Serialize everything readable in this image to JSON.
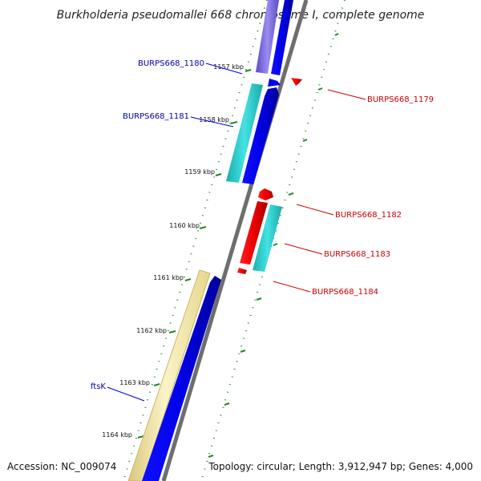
{
  "title": "Burkholderia pseudomallei 668 chromosome I, complete genome",
  "footer": {
    "accession": "Accession: NC_009074",
    "summary": "Topology: circular; Length: 3,912,947 bp; Genes: 4,000"
  },
  "ticks": [
    "1157 kbp",
    "1158 kbp",
    "1159 kbp",
    "1160 kbp",
    "1161 kbp",
    "1162 kbp",
    "1163 kbp",
    "1164 kbp"
  ],
  "gene_labels": {
    "left": [
      "BURPS668_1180",
      "BURPS668_1181",
      "ftsK"
    ],
    "right": [
      "BURPS668_1179",
      "BURPS668_1182",
      "BURPS668_1183",
      "BURPS668_1184"
    ]
  },
  "colors": {
    "forward_cds": "#0000ee",
    "reverse_cds": "#ee1111",
    "cyan_band": "#22cccc",
    "purple_band": "#7766dd",
    "yellow_band": "#f2e6a0",
    "backbone": "#888888",
    "tick_dots": "#228822",
    "label_left": "#0000aa",
    "label_right": "#cc0000"
  }
}
